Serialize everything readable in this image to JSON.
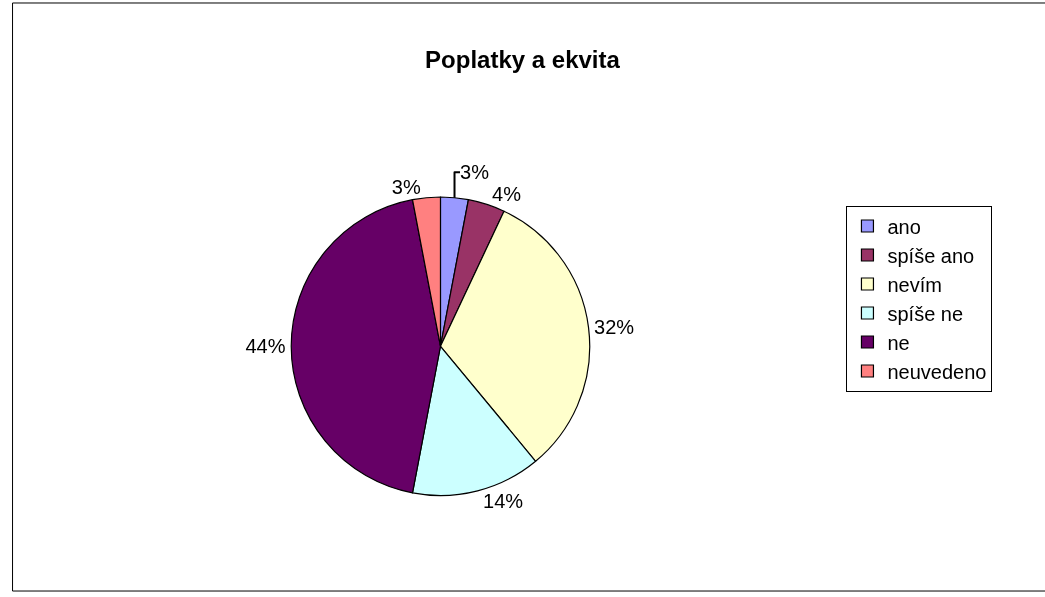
{
  "chart_data": {
    "type": "pie",
    "title": "Poplatky a ekvita",
    "categories": [
      "ano",
      "spíše ano",
      "nevím",
      "spíše ne",
      "ne",
      "neuvedeno"
    ],
    "values": [
      3,
      4,
      32,
      14,
      44,
      3
    ],
    "value_labels": [
      "3%",
      "4%",
      "32%",
      "14%",
      "44%",
      "3%"
    ],
    "colors": [
      "#9999ff",
      "#993366",
      "#ffffcc",
      "#ccffff",
      "#660066",
      "#ff8080"
    ],
    "legend": "right"
  }
}
